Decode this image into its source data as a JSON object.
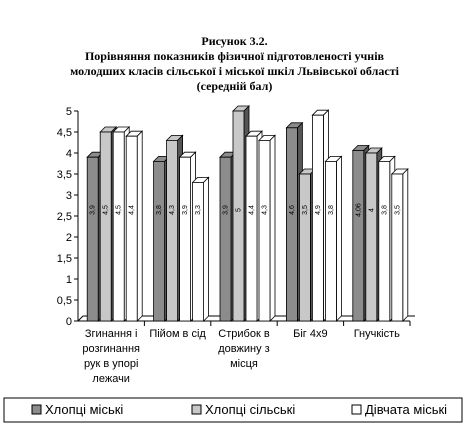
{
  "chart_data": {
    "type": "bar3d",
    "title": [
      "Рисунок 3.2.",
      "Порівняння показників фізичної підготовленості учнів",
      "молодших класів сільської і міської шкіл Львівської області",
      "(середній бал)"
    ],
    "categories": [
      "Згинання і розгинання рук в упорі лежачи",
      "Пійом в сід",
      "Стрибок в довжину з місця",
      "Біг 4x9",
      "Гнучкість"
    ],
    "series": [
      {
        "name": "Хлопці міські",
        "color": "#8c8c8c",
        "values": [
          3.9,
          3.8,
          3.9,
          4.6,
          4.06
        ],
        "value_labels": [
          "3,9",
          "3,8",
          "3,9",
          "4,6",
          "4,06"
        ]
      },
      {
        "name": "Хлопці сільські",
        "color": "#c8c8c8",
        "values": [
          4.5,
          4.3,
          5,
          3.5,
          4
        ],
        "value_labels": [
          "4,5",
          "4,3",
          "5",
          "3,5",
          "4"
        ]
      },
      {
        "name": "Дівчата міські",
        "color": "#ffffff",
        "values": [
          4.5,
          3.9,
          4.4,
          4.9,
          3.8
        ],
        "value_labels": [
          "4,5",
          "3,9",
          "4,4",
          "4,9",
          "3,8"
        ]
      },
      {
        "color": "#ffffff",
        "values": [
          4.4,
          3.3,
          4.3,
          3.8,
          3.5
        ],
        "value_labels": [
          "4,4",
          "3,3",
          "4,3",
          "3,8",
          "3,5"
        ]
      }
    ],
    "ylim": [
      0,
      5
    ],
    "yticks": [
      0,
      {
        "value": 0.5,
        "label": "0,5"
      },
      1,
      {
        "value": 1.5,
        "label": "1,5"
      },
      2,
      {
        "value": 2.5,
        "label": "2,5"
      },
      3,
      {
        "value": 3.5,
        "label": "3,5"
      },
      4,
      {
        "value": 4.5,
        "label": "4,5"
      },
      5
    ]
  }
}
